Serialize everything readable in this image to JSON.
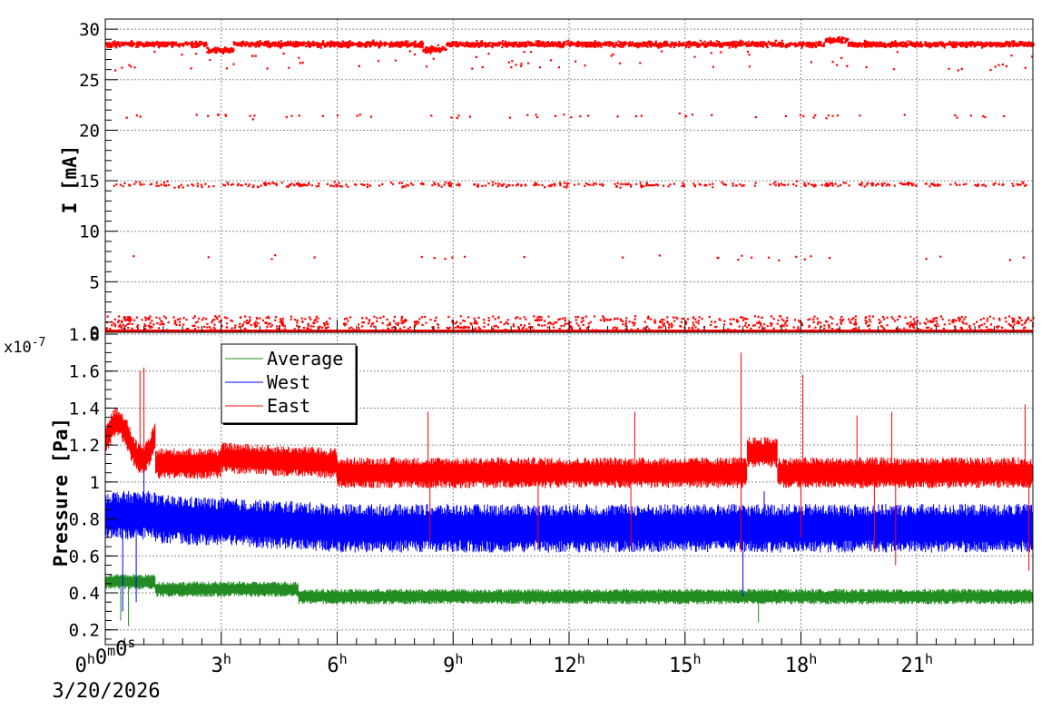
{
  "chart_data": [
    {
      "type": "scatter",
      "panel": "top",
      "ylabel": "I [mA]",
      "ylim": [
        0,
        31
      ],
      "yticks": [
        "0",
        "5",
        "10",
        "15",
        "20",
        "25",
        "30"
      ],
      "xlim_hours": [
        0,
        24
      ],
      "grid": true,
      "series": [
        {
          "color": "#ff0000",
          "bands": [
            {
              "approx_value": 28.6,
              "description": "dense main beam current band"
            },
            {
              "approx_value": 21.5,
              "description": "sparse points"
            },
            {
              "approx_value": 14.7,
              "description": "scattered points"
            },
            {
              "approx_value": 7.5,
              "description": "few points"
            },
            {
              "approx_value": 0.8,
              "description": "scattered points near zero"
            },
            {
              "approx_value": 0,
              "description": "continuous line at zero"
            }
          ]
        }
      ]
    },
    {
      "type": "line",
      "panel": "bottom",
      "ylabel": "Pressure [Pa]",
      "y_multiplier": "x10",
      "y_exponent": "-7",
      "ylim": [
        0.12,
        1.81
      ],
      "yticks": [
        "0.2",
        "0.4",
        "0.6",
        "0.8",
        "1",
        "1.2",
        "1.4",
        "1.6",
        "1.8"
      ],
      "xlim_hours": [
        0,
        24
      ],
      "grid": true,
      "legend_position": "top-left",
      "series": [
        {
          "name": "Average",
          "color": "#228b22",
          "approx_level": 0.4
        },
        {
          "name": "West",
          "color": "#0000ff",
          "approx_level": 0.75
        },
        {
          "name": "East",
          "color": "#ff0000",
          "approx_level": 1.05
        }
      ]
    }
  ],
  "x_axis": {
    "ticks": [
      {
        "hour": 0,
        "parts": [
          [
            "0",
            "h"
          ],
          [
            "0",
            "m"
          ],
          [
            "0",
            "s"
          ]
        ]
      },
      {
        "hour": 3,
        "parts": [
          [
            "3",
            "h"
          ]
        ]
      },
      {
        "hour": 6,
        "parts": [
          [
            "6",
            "h"
          ]
        ]
      },
      {
        "hour": 9,
        "parts": [
          [
            "9",
            "h"
          ]
        ]
      },
      {
        "hour": 12,
        "parts": [
          [
            "12",
            "h"
          ]
        ]
      },
      {
        "hour": 15,
        "parts": [
          [
            "15",
            "h"
          ]
        ]
      },
      {
        "hour": 18,
        "parts": [
          [
            "18",
            "h"
          ]
        ]
      },
      {
        "hour": 21,
        "parts": [
          [
            "21",
            "h"
          ]
        ]
      }
    ],
    "date_label": "3/20/2026"
  }
}
